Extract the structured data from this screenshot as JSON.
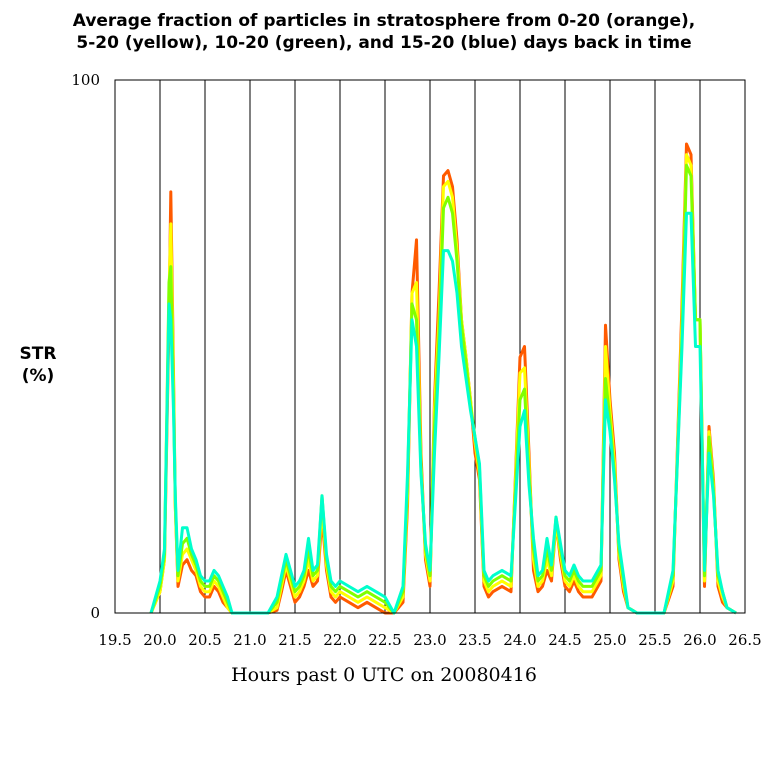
{
  "chart_data": {
    "type": "line",
    "title_line1": "Average fraction of particles in stratosphere from 0-20 (orange),",
    "title_line2": "5-20 (yellow), 10-20 (green), and 15-20 (blue) days back in time",
    "ylabel_line1": "STR",
    "ylabel_line2": "(%)",
    "xlabel": "Hours past 0 UTC on 20080416",
    "xlim": [
      19.5,
      26.5
    ],
    "ylim": [
      0,
      100
    ],
    "xticks": [
      "19.5",
      "20.0",
      "20.5",
      "21.0",
      "21.5",
      "22.0",
      "22.5",
      "23.0",
      "23.5",
      "24.0",
      "24.5",
      "25.0",
      "25.5",
      "26.0",
      "26.5"
    ],
    "yticks": [
      "0",
      "100"
    ],
    "vlines": [
      20.0,
      20.5,
      21.0,
      21.5,
      22.0,
      22.5,
      23.0,
      23.5,
      24.0,
      24.5,
      25.0,
      25.5,
      26.0
    ],
    "x": [
      19.9,
      20.0,
      20.05,
      20.1,
      20.12,
      20.15,
      20.17,
      20.2,
      20.25,
      20.3,
      20.35,
      20.4,
      20.45,
      20.5,
      20.55,
      20.6,
      20.65,
      20.7,
      20.75,
      20.8,
      20.9,
      21.0,
      21.2,
      21.3,
      21.35,
      21.4,
      21.45,
      21.5,
      21.55,
      21.6,
      21.65,
      21.7,
      21.75,
      21.8,
      21.85,
      21.9,
      21.95,
      22.0,
      22.1,
      22.2,
      22.3,
      22.4,
      22.5,
      22.6,
      22.7,
      22.75,
      22.8,
      22.85,
      22.9,
      22.95,
      23.0,
      23.05,
      23.1,
      23.15,
      23.2,
      23.25,
      23.3,
      23.35,
      23.4,
      23.45,
      23.5,
      23.55,
      23.6,
      23.65,
      23.7,
      23.8,
      23.9,
      24.0,
      24.05,
      24.1,
      24.15,
      24.2,
      24.25,
      24.3,
      24.35,
      24.4,
      24.45,
      24.5,
      24.55,
      24.6,
      24.65,
      24.7,
      24.8,
      24.9,
      24.95,
      25.0,
      25.05,
      25.1,
      25.15,
      25.2,
      25.3,
      25.4,
      25.5,
      25.6,
      25.7,
      25.8,
      25.85,
      25.9,
      25.95,
      26.0,
      26.05,
      26.1,
      26.15,
      26.2,
      26.25,
      26.3,
      26.4
    ],
    "series": [
      {
        "color": "#ff5a00",
        "values": [
          0,
          4,
          10,
          55,
          79,
          45,
          20,
          5,
          9,
          10,
          8,
          7,
          4,
          3,
          3,
          5,
          4,
          2,
          1,
          0,
          0,
          0,
          0,
          0.5,
          4,
          8,
          5,
          2,
          3,
          5,
          8,
          5,
          6,
          18,
          8,
          3,
          2,
          3,
          2,
          1,
          2,
          1,
          0,
          0,
          2,
          20,
          60,
          70,
          30,
          10,
          5,
          40,
          60,
          82,
          83,
          80,
          70,
          55,
          48,
          40,
          30,
          25,
          5,
          3,
          4,
          5,
          4,
          48,
          50,
          30,
          8,
          4,
          5,
          8,
          6,
          17,
          10,
          5,
          4,
          6,
          4,
          3,
          3,
          6,
          54,
          40,
          30,
          10,
          4,
          1,
          0,
          0,
          0,
          0,
          5,
          58,
          88,
          86,
          55,
          55,
          5,
          35,
          25,
          5,
          2,
          1,
          0
        ]
      },
      {
        "color": "#ffff00",
        "values": [
          0,
          4,
          10,
          60,
          73,
          43,
          20,
          6,
          11,
          12,
          10,
          8,
          5,
          4,
          4,
          6,
          5,
          3,
          1,
          0,
          0,
          0,
          0,
          1,
          5,
          9,
          6,
          3,
          4,
          6,
          10,
          6,
          7,
          20,
          9,
          4,
          3,
          4,
          3,
          2,
          3,
          2,
          1,
          0,
          3,
          22,
          60,
          62,
          28,
          11,
          6,
          38,
          55,
          80,
          81,
          78,
          68,
          55,
          48,
          40,
          32,
          26,
          6,
          4,
          5,
          6,
          5,
          45,
          46,
          28,
          10,
          5,
          6,
          10,
          7,
          17,
          11,
          6,
          5,
          7,
          5,
          4,
          4,
          7,
          50,
          38,
          28,
          11,
          5,
          1,
          0,
          0,
          0,
          0,
          6,
          55,
          86,
          84,
          55,
          55,
          6,
          34,
          24,
          6,
          3,
          1,
          0
        ]
      },
      {
        "color": "#80ff00",
        "values": [
          0,
          5,
          11,
          62,
          65,
          40,
          21,
          7,
          13,
          14,
          11,
          9,
          6,
          5,
          5,
          7,
          6,
          4,
          2,
          0,
          0,
          0,
          0,
          2,
          6,
          10,
          7,
          4,
          5,
          7,
          12,
          7,
          8,
          22,
          10,
          5,
          4,
          5,
          4,
          3,
          4,
          3,
          2,
          0,
          4,
          24,
          58,
          55,
          27,
          12,
          7,
          35,
          52,
          76,
          78,
          75,
          66,
          54,
          47,
          39,
          33,
          27,
          7,
          5,
          6,
          7,
          6,
          40,
          42,
          26,
          12,
          6,
          7,
          12,
          8,
          18,
          12,
          7,
          6,
          8,
          6,
          5,
          5,
          8,
          44,
          36,
          26,
          12,
          6,
          1,
          0,
          0,
          0,
          0,
          7,
          52,
          84,
          82,
          55,
          55,
          7,
          33,
          23,
          7,
          4,
          1,
          0
        ]
      },
      {
        "color": "#00ffcc",
        "values": [
          0,
          6,
          12,
          58,
          55,
          38,
          22,
          8,
          16,
          16,
          12,
          10,
          7,
          6,
          6,
          8,
          7,
          5,
          3,
          0,
          0,
          0,
          0,
          3,
          7,
          11,
          8,
          5,
          6,
          8,
          14,
          8,
          9,
          22,
          11,
          6,
          5,
          6,
          5,
          4,
          5,
          4,
          3,
          0,
          5,
          26,
          55,
          50,
          26,
          13,
          8,
          30,
          48,
          68,
          68,
          66,
          60,
          50,
          44,
          38,
          33,
          28,
          8,
          6,
          7,
          8,
          7,
          35,
          38,
          24,
          14,
          7,
          8,
          14,
          9,
          18,
          13,
          8,
          7,
          9,
          7,
          6,
          6,
          9,
          40,
          34,
          25,
          13,
          7,
          1,
          0,
          0,
          0,
          0,
          8,
          50,
          75,
          75,
          50,
          50,
          8,
          30,
          22,
          8,
          4,
          1,
          0
        ]
      }
    ]
  }
}
